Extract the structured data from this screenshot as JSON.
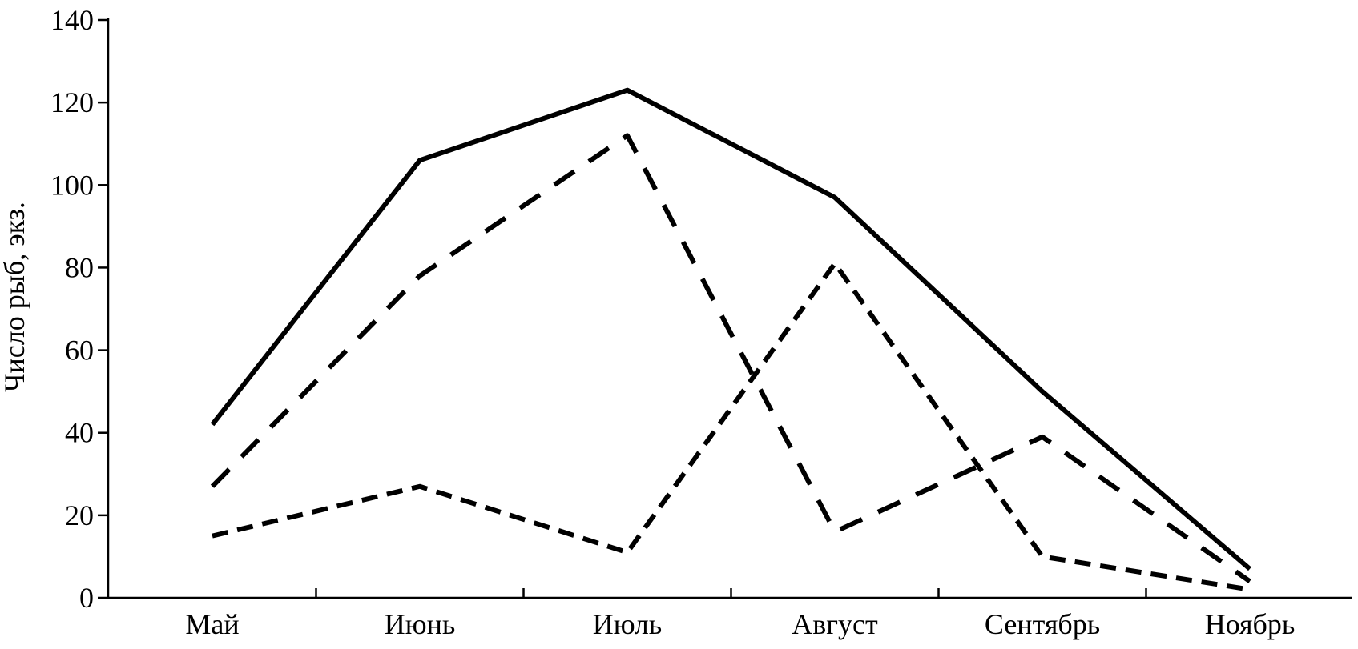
{
  "chart_data": {
    "type": "line",
    "title": "",
    "xlabel": "",
    "ylabel": "Число рыб, экз.",
    "categories": [
      "Май",
      "Июнь",
      "Июль",
      "Август",
      "Сентябрь",
      "Ноябрь"
    ],
    "ylim": [
      0,
      140
    ],
    "yticks": [
      0,
      20,
      40,
      60,
      80,
      100,
      120,
      140
    ],
    "grid": false,
    "legend": "none",
    "series": [
      {
        "style": "solid",
        "color": "#000000",
        "values": [
          42,
          106,
          123,
          97,
          50,
          7
        ]
      },
      {
        "style": "dashed",
        "color": "#000000",
        "values": [
          27,
          78,
          112,
          16,
          39,
          4
        ]
      },
      {
        "style": "short-dash",
        "color": "#000000",
        "values": [
          15,
          27,
          11,
          81,
          10,
          2
        ]
      }
    ]
  }
}
